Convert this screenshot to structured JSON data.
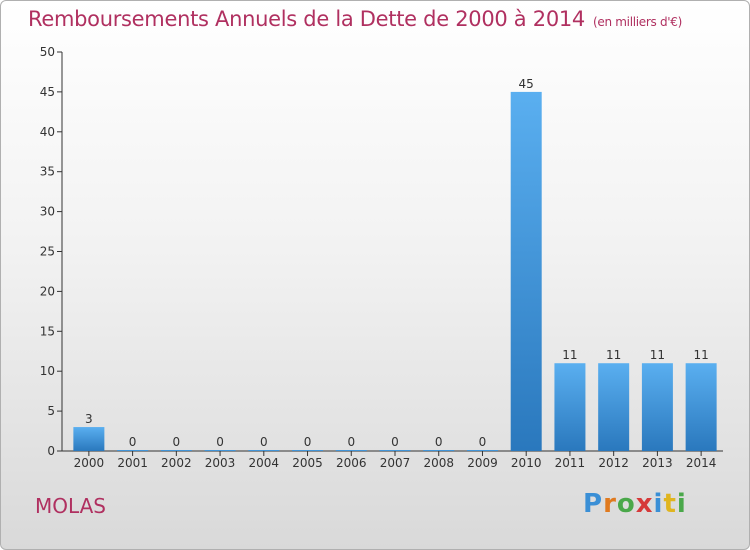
{
  "title": "Remboursements Annuels de la Dette de 2000 à 2014",
  "unit": "(en milliers d'€)",
  "commune": "MOLAS",
  "logo": {
    "text": "Proxiti",
    "letters": [
      "P",
      "r",
      "o",
      "x",
      "i",
      "t",
      "i"
    ]
  },
  "colors": {
    "title": "#b03060",
    "bar_light": "#5aaff0",
    "bar_dark": "#2a78bd",
    "axis": "#333333"
  },
  "chart_data": {
    "type": "bar",
    "categories": [
      "2000",
      "2001",
      "2002",
      "2003",
      "2004",
      "2005",
      "2006",
      "2007",
      "2008",
      "2009",
      "2010",
      "2011",
      "2012",
      "2013",
      "2014"
    ],
    "values": [
      3,
      0,
      0,
      0,
      0,
      0,
      0,
      0,
      0,
      0,
      45,
      11,
      11,
      11,
      11
    ],
    "data_labels": [
      "3",
      "0",
      "0",
      "0",
      "0",
      "0",
      "0",
      "0",
      "0",
      "0",
      "45",
      "11",
      "11",
      "11",
      "11"
    ],
    "ylim": [
      0,
      50
    ],
    "yticks": [
      0,
      5,
      10,
      15,
      20,
      25,
      30,
      35,
      40,
      45,
      50
    ],
    "grid": false
  }
}
